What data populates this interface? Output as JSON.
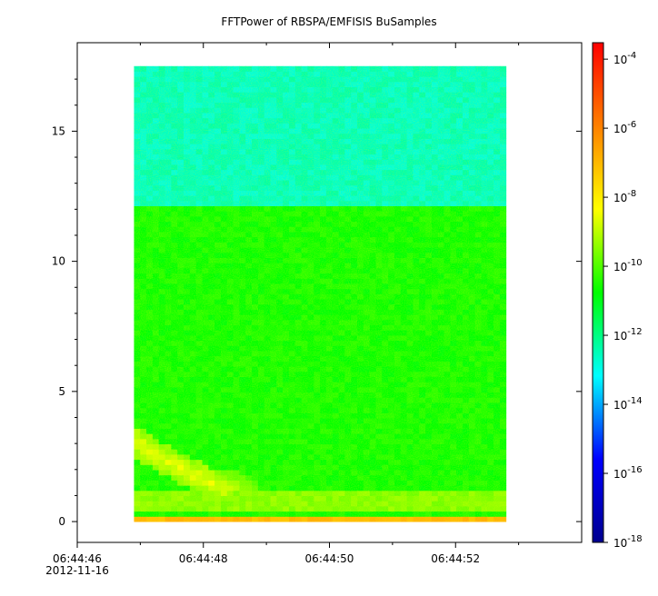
{
  "chart_data": {
    "type": "heatmap",
    "title": "FFTPower of RBSPA/EMFISIS  BuSamples",
    "xlabel": "",
    "ylabel": "",
    "xlim": [
      "06:44:46",
      "06:44:54"
    ],
    "x_ticks": [
      {
        "value": "06:44:46",
        "label": "06:44:46",
        "sublabel": "2012-11-16"
      },
      {
        "value": "06:44:48",
        "label": "06:44:48"
      },
      {
        "value": "06:44:50",
        "label": "06:44:50"
      },
      {
        "value": "06:44:52",
        "label": "06:44:52"
      }
    ],
    "x_minor_ticks": [
      "06:44:47",
      "06:44:49",
      "06:44:51",
      "06:44:53"
    ],
    "ylim": [
      -0.8,
      18.4
    ],
    "y_ticks": [
      0,
      5,
      10,
      15
    ],
    "y_tick_labels": [
      "0",
      "5",
      "10",
      "15"
    ],
    "data_extent": {
      "x": [
        "06:44:46.9",
        "06:44:52.8"
      ],
      "y": [
        0,
        17.5
      ]
    },
    "colorbar": {
      "scale": "log",
      "range": [
        1e-18,
        0.0003
      ],
      "colormap": [
        "#00008f",
        "#0000ff",
        "#00ffff",
        "#00ff00",
        "#ffff00",
        "#ff8000",
        "#ff0000"
      ],
      "ticks": [
        {
          "value": 0.0001,
          "base": "10",
          "exp": "-4"
        },
        {
          "value": 1e-06,
          "base": "10",
          "exp": "-6"
        },
        {
          "value": 1e-08,
          "base": "10",
          "exp": "-8"
        },
        {
          "value": 1e-10,
          "base": "10",
          "exp": "-10"
        },
        {
          "value": 1e-12,
          "base": "10",
          "exp": "-12"
        },
        {
          "value": 1e-14,
          "base": "10",
          "exp": "-14"
        },
        {
          "value": 1e-16,
          "base": "10",
          "exp": "-16"
        },
        {
          "value": 1e-18,
          "base": "10",
          "exp": "-18"
        }
      ]
    },
    "regions": [
      {
        "description": "background above 12.2",
        "y_range": [
          12.2,
          17.5
        ],
        "log10_power": -12.6
      },
      {
        "description": "background below 12.2",
        "y_range": [
          0,
          12.2
        ],
        "log10_power": -10.6
      },
      {
        "description": "low-frequency band",
        "y_range": [
          0.4,
          1.2
        ],
        "log10_power": -9.5
      },
      {
        "description": "bottom strong band",
        "y_range": [
          0,
          0.25
        ],
        "log10_power": -7.0
      },
      {
        "description": "descending tone",
        "start": {
          "time": "06:44:46.9",
          "freq": 3.2
        },
        "end": {
          "time": "06:44:48.3",
          "freq": 1.3
        },
        "log10_power": -8.6
      }
    ]
  }
}
